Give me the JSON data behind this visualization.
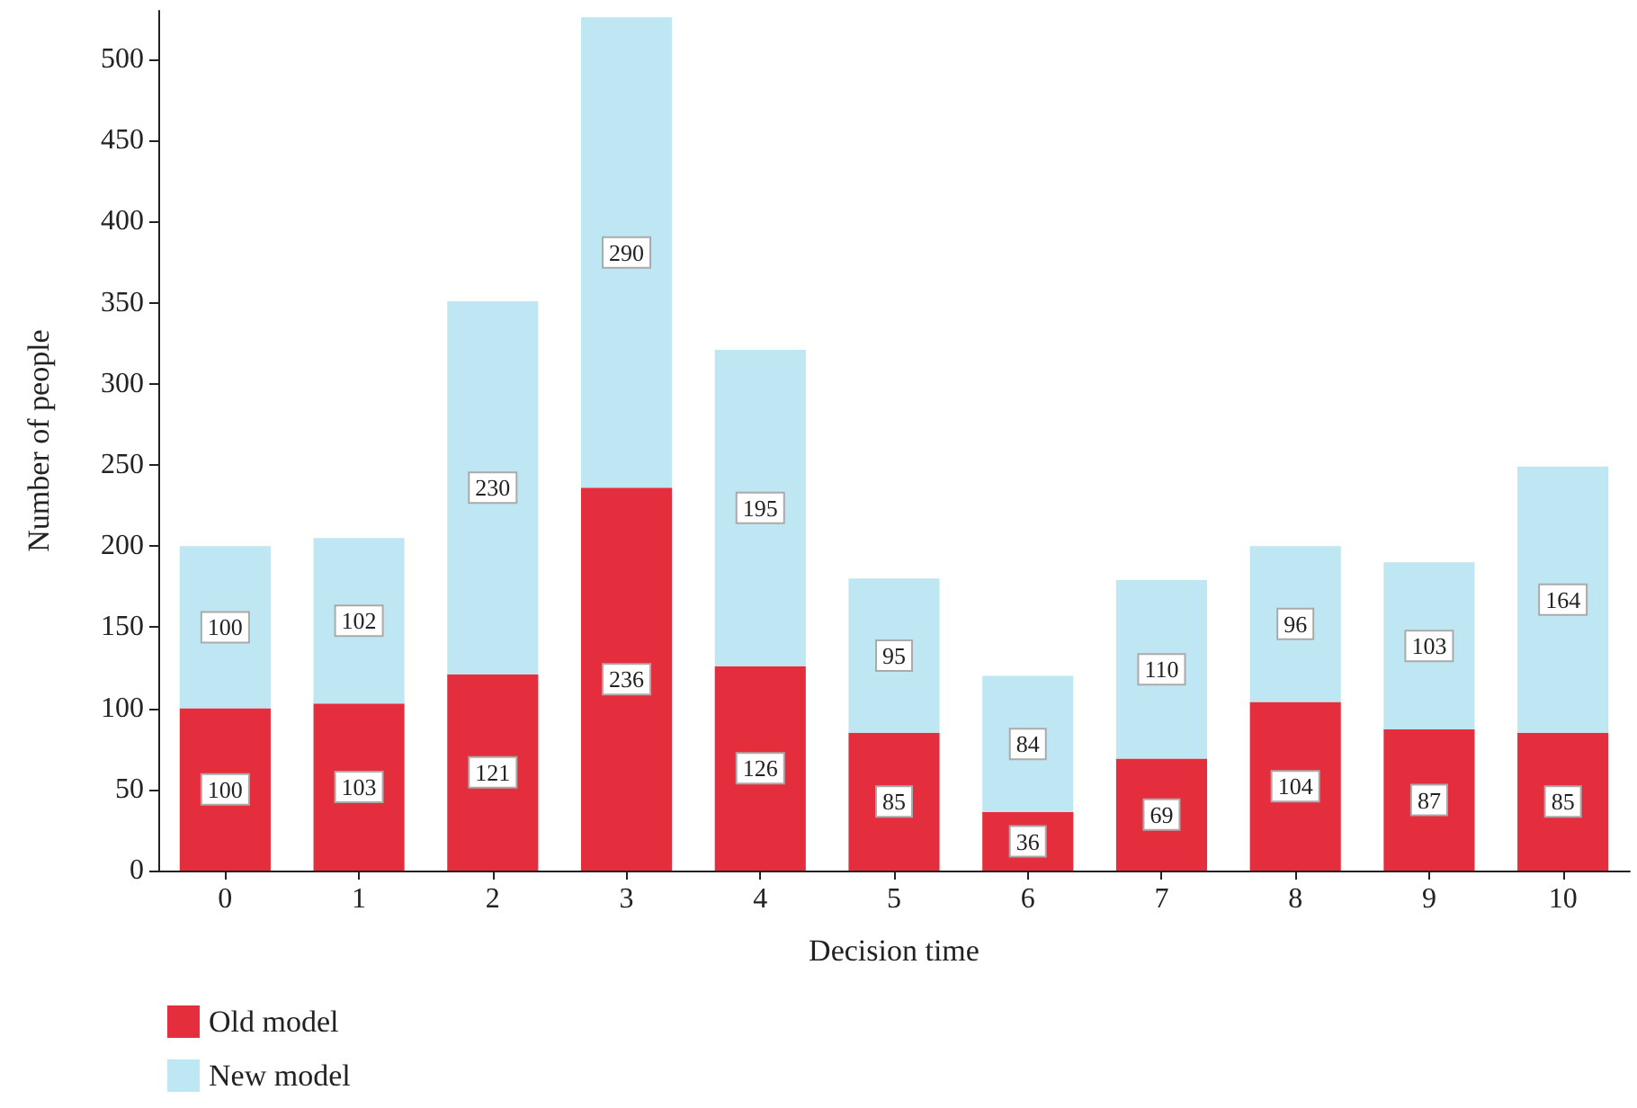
{
  "chart_data": {
    "type": "bar",
    "stacked": true,
    "xlabel": "Decision time",
    "ylabel": "Number of people",
    "categories": [
      "0",
      "1",
      "2",
      "3",
      "4",
      "5",
      "6",
      "7",
      "8",
      "9",
      "10"
    ],
    "series": [
      {
        "name": "Old model",
        "color": "#e52e3d",
        "values": [
          100,
          103,
          121,
          236,
          126,
          85,
          36,
          69,
          104,
          87,
          85
        ]
      },
      {
        "name": "New model",
        "color": "#bfe6f3",
        "values": [
          100,
          102,
          230,
          290,
          195,
          95,
          84,
          110,
          96,
          103,
          164
        ]
      }
    ],
    "ylim": [
      0,
      530
    ],
    "yticks": [
      0,
      50,
      100,
      150,
      200,
      250,
      300,
      350,
      400,
      450,
      500
    ],
    "data_labels": true,
    "grid": false,
    "legend": "bottom left"
  }
}
